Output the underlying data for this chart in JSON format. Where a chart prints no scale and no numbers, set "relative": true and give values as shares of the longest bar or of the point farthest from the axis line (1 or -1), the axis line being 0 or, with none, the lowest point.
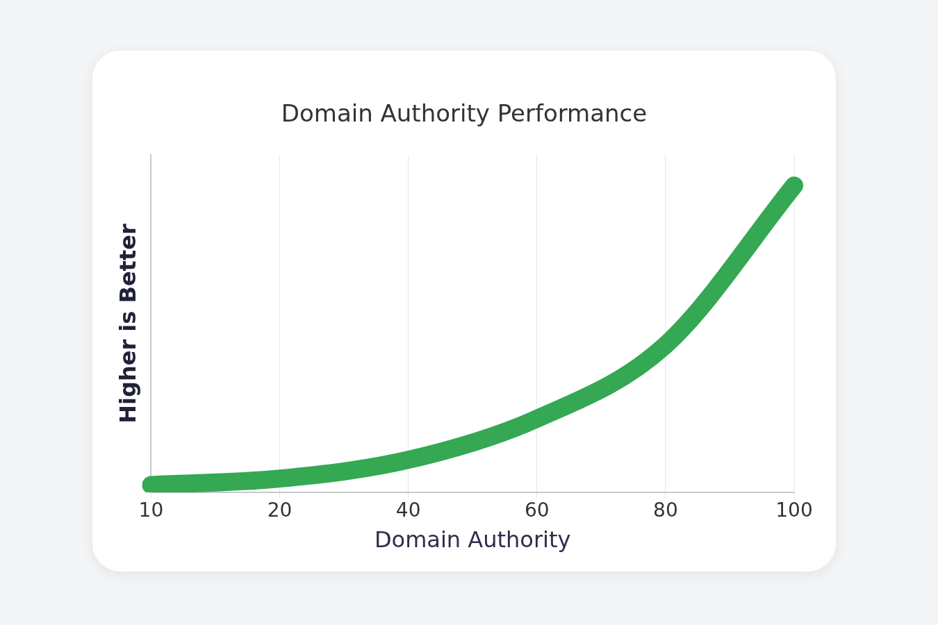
{
  "chart_data": {
    "type": "line",
    "title": "Domain Authority Performance",
    "xlabel": "Domain Authority",
    "ylabel": "Higher is Better",
    "categories": [
      "10",
      "20",
      "40",
      "60",
      "80",
      "100"
    ],
    "series": [
      {
        "color": "#34a853",
        "values": [
          0.024,
          0.045,
          0.106,
          0.24,
          0.48,
          1
        ]
      }
    ],
    "relative": true,
    "grid": "x",
    "legend": false,
    "marker": "none",
    "line_style": "solid"
  }
}
